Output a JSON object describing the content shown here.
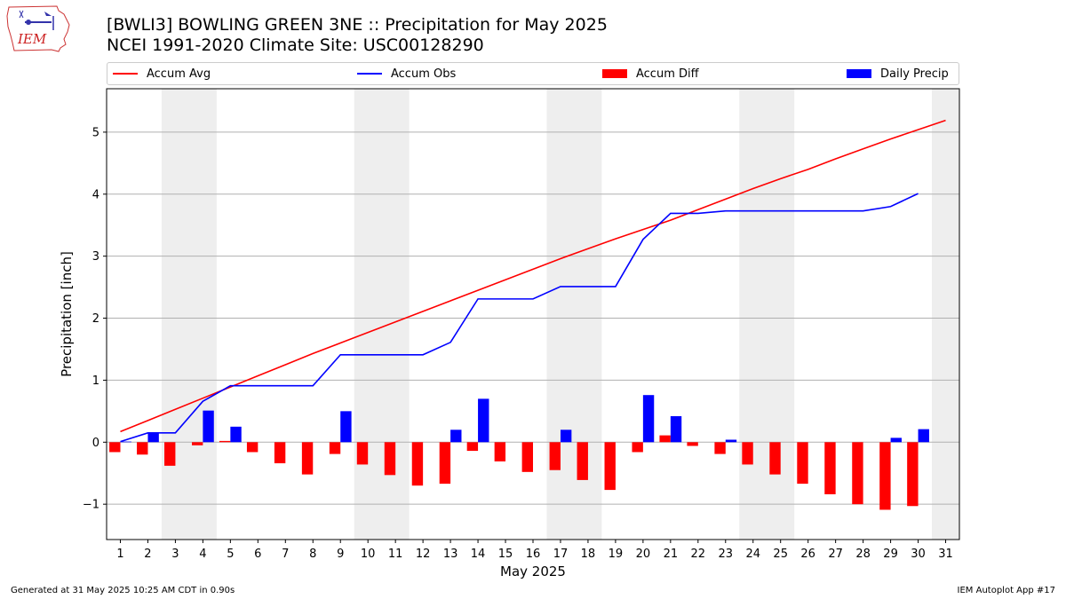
{
  "header": {
    "title_line1": "[BWLI3] BOWLING GREEN 3NE :: Precipitation for May 2025",
    "title_line2": "NCEI 1991-2020 Climate Site: USC00128290",
    "logo_text": "IEM"
  },
  "footer": {
    "generated": "Generated at 31 May 2025 10:25 AM CDT in 0.90s",
    "app": "IEM Autoplot App #17"
  },
  "legend": [
    {
      "label": "Accum Avg",
      "kind": "line",
      "color": "#ff0000"
    },
    {
      "label": "Accum Obs",
      "kind": "line",
      "color": "#0000ff"
    },
    {
      "label": "Accum Diff",
      "kind": "bar",
      "color": "#ff0000"
    },
    {
      "label": "Daily Precip",
      "kind": "bar",
      "color": "#0000ff"
    }
  ],
  "chart_data": {
    "type": "bar",
    "xlabel": "May 2025",
    "ylabel": "Precipitation [inch]",
    "xlim": [
      0.5,
      31.5
    ],
    "ylim": [
      -1.57,
      5.7
    ],
    "yticks": [
      -1,
      0,
      1,
      2,
      3,
      4,
      5
    ],
    "ytick_labels": [
      "−1",
      "0",
      "1",
      "2",
      "3",
      "4",
      "5"
    ],
    "x": [
      1,
      2,
      3,
      4,
      5,
      6,
      7,
      8,
      9,
      10,
      11,
      12,
      13,
      14,
      15,
      16,
      17,
      18,
      19,
      20,
      21,
      22,
      23,
      24,
      25,
      26,
      27,
      28,
      29,
      30,
      31
    ],
    "grid": "horizontal",
    "weekend_shading": [
      [
        2.5,
        4.5
      ],
      [
        9.5,
        11.5
      ],
      [
        16.5,
        18.5
      ],
      [
        23.5,
        25.5
      ],
      [
        30.5,
        31.5
      ]
    ],
    "series": [
      {
        "name": "Accum Avg",
        "type": "line",
        "color": "#ff0000",
        "x": [
          1,
          2,
          3,
          4,
          5,
          6,
          7,
          8,
          9,
          10,
          11,
          12,
          13,
          14,
          15,
          16,
          17,
          18,
          19,
          20,
          21,
          22,
          23,
          24,
          25,
          26,
          27,
          28,
          29,
          30,
          31
        ],
        "values": [
          0.17,
          0.35,
          0.53,
          0.71,
          0.89,
          1.07,
          1.25,
          1.43,
          1.6,
          1.77,
          1.94,
          2.11,
          2.28,
          2.45,
          2.62,
          2.79,
          2.96,
          3.12,
          3.28,
          3.43,
          3.58,
          3.75,
          3.92,
          4.09,
          4.25,
          4.4,
          4.57,
          4.73,
          4.89,
          5.04,
          5.19
        ]
      },
      {
        "name": "Accum Obs",
        "type": "line",
        "color": "#0000ff",
        "x": [
          1,
          2,
          3,
          4,
          5,
          6,
          7,
          8,
          9,
          10,
          11,
          12,
          13,
          14,
          15,
          16,
          17,
          18,
          19,
          20,
          21,
          22,
          23,
          24,
          25,
          26,
          27,
          28,
          29,
          30
        ],
        "values": [
          0.01,
          0.15,
          0.15,
          0.66,
          0.91,
          0.91,
          0.91,
          0.91,
          1.41,
          1.41,
          1.41,
          1.41,
          1.61,
          2.31,
          2.31,
          2.31,
          2.51,
          2.51,
          2.51,
          3.27,
          3.69,
          3.69,
          3.73,
          3.73,
          3.73,
          3.73,
          3.73,
          3.73,
          3.8,
          4.01
        ]
      },
      {
        "name": "Accum Diff",
        "type": "bar",
        "color": "#ff0000",
        "x": [
          1,
          2,
          3,
          4,
          5,
          6,
          7,
          8,
          9,
          10,
          11,
          12,
          13,
          14,
          15,
          16,
          17,
          18,
          19,
          20,
          21,
          22,
          23,
          24,
          25,
          26,
          27,
          28,
          29,
          30
        ],
        "values": [
          -0.16,
          -0.2,
          -0.38,
          -0.05,
          0.02,
          -0.16,
          -0.34,
          -0.52,
          -0.19,
          -0.36,
          -0.53,
          -0.7,
          -0.67,
          -0.14,
          -0.31,
          -0.48,
          -0.45,
          -0.61,
          -0.77,
          -0.16,
          0.11,
          -0.06,
          -0.19,
          -0.36,
          -0.52,
          -0.67,
          -0.84,
          -1.0,
          -1.09,
          -1.03
        ]
      },
      {
        "name": "Daily Precip",
        "type": "bar",
        "color": "#0000ff",
        "x": [
          1,
          2,
          3,
          4,
          5,
          6,
          7,
          8,
          9,
          10,
          11,
          12,
          13,
          14,
          15,
          16,
          17,
          18,
          19,
          20,
          21,
          22,
          23,
          24,
          25,
          26,
          27,
          28,
          29,
          30
        ],
        "values": [
          0.01,
          0.14,
          0,
          0.51,
          0.25,
          0,
          0,
          0,
          0.5,
          0,
          0,
          0,
          0.2,
          0.7,
          0,
          0,
          0.2,
          0,
          0,
          0.76,
          0.42,
          0,
          0.04,
          0,
          0,
          0,
          0,
          0,
          0.07,
          0.21
        ]
      }
    ]
  }
}
